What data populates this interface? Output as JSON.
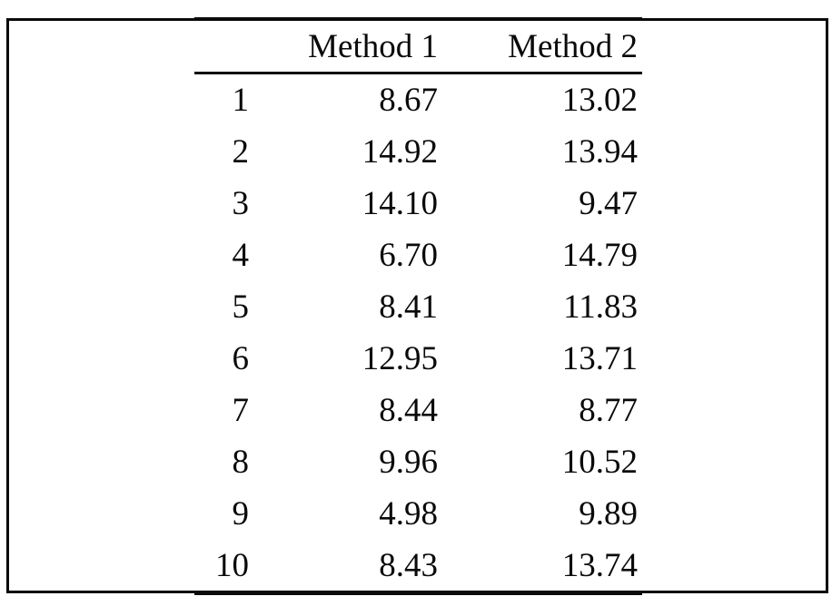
{
  "figure": {
    "border_color": "#0a0a0a",
    "background_color": "#ffffff",
    "text_color": "#0a0a0a"
  },
  "table": {
    "header": {
      "index": "",
      "method1": "Method 1",
      "method2": "Method 2"
    },
    "rows": [
      {
        "id": "1",
        "method1": "8.67",
        "method2": "13.02"
      },
      {
        "id": "2",
        "method1": "14.92",
        "method2": "13.94"
      },
      {
        "id": "3",
        "method1": "14.10",
        "method2": "9.47"
      },
      {
        "id": "4",
        "method1": "6.70",
        "method2": "14.79"
      },
      {
        "id": "5",
        "method1": "8.41",
        "method2": "11.83"
      },
      {
        "id": "6",
        "method1": "12.95",
        "method2": "13.71"
      },
      {
        "id": "7",
        "method1": "8.44",
        "method2": "8.77"
      },
      {
        "id": "8",
        "method1": "9.96",
        "method2": "10.52"
      },
      {
        "id": "9",
        "method1": "4.98",
        "method2": "9.89"
      },
      {
        "id": "10",
        "method1": "8.43",
        "method2": "13.74"
      }
    ]
  }
}
